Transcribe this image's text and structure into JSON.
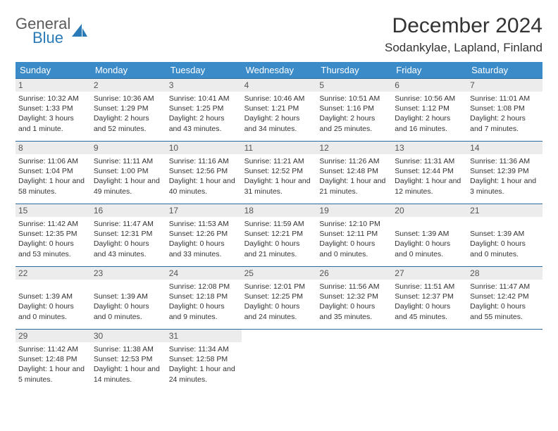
{
  "logo": {
    "top": "General",
    "bottom": "Blue"
  },
  "title": "December 2024",
  "location": "Sodankylae, Lapland, Finland",
  "colors": {
    "header_bg": "#3b8bc9",
    "border": "#2a6aa0",
    "daynum_bg": "#ececec",
    "text": "#333333",
    "logo_gray": "#5a5a5a",
    "logo_blue": "#2a7ab8"
  },
  "day_headers": [
    "Sunday",
    "Monday",
    "Tuesday",
    "Wednesday",
    "Thursday",
    "Friday",
    "Saturday"
  ],
  "weeks": [
    [
      {
        "n": "1",
        "sr": "Sunrise: 10:32 AM",
        "ss": "Sunset: 1:33 PM",
        "dl": "Daylight: 3 hours and 1 minute."
      },
      {
        "n": "2",
        "sr": "Sunrise: 10:36 AM",
        "ss": "Sunset: 1:29 PM",
        "dl": "Daylight: 2 hours and 52 minutes."
      },
      {
        "n": "3",
        "sr": "Sunrise: 10:41 AM",
        "ss": "Sunset: 1:25 PM",
        "dl": "Daylight: 2 hours and 43 minutes."
      },
      {
        "n": "4",
        "sr": "Sunrise: 10:46 AM",
        "ss": "Sunset: 1:21 PM",
        "dl": "Daylight: 2 hours and 34 minutes."
      },
      {
        "n": "5",
        "sr": "Sunrise: 10:51 AM",
        "ss": "Sunset: 1:16 PM",
        "dl": "Daylight: 2 hours and 25 minutes."
      },
      {
        "n": "6",
        "sr": "Sunrise: 10:56 AM",
        "ss": "Sunset: 1:12 PM",
        "dl": "Daylight: 2 hours and 16 minutes."
      },
      {
        "n": "7",
        "sr": "Sunrise: 11:01 AM",
        "ss": "Sunset: 1:08 PM",
        "dl": "Daylight: 2 hours and 7 minutes."
      }
    ],
    [
      {
        "n": "8",
        "sr": "Sunrise: 11:06 AM",
        "ss": "Sunset: 1:04 PM",
        "dl": "Daylight: 1 hour and 58 minutes."
      },
      {
        "n": "9",
        "sr": "Sunrise: 11:11 AM",
        "ss": "Sunset: 1:00 PM",
        "dl": "Daylight: 1 hour and 49 minutes."
      },
      {
        "n": "10",
        "sr": "Sunrise: 11:16 AM",
        "ss": "Sunset: 12:56 PM",
        "dl": "Daylight: 1 hour and 40 minutes."
      },
      {
        "n": "11",
        "sr": "Sunrise: 11:21 AM",
        "ss": "Sunset: 12:52 PM",
        "dl": "Daylight: 1 hour and 31 minutes."
      },
      {
        "n": "12",
        "sr": "Sunrise: 11:26 AM",
        "ss": "Sunset: 12:48 PM",
        "dl": "Daylight: 1 hour and 21 minutes."
      },
      {
        "n": "13",
        "sr": "Sunrise: 11:31 AM",
        "ss": "Sunset: 12:44 PM",
        "dl": "Daylight: 1 hour and 12 minutes."
      },
      {
        "n": "14",
        "sr": "Sunrise: 11:36 AM",
        "ss": "Sunset: 12:39 PM",
        "dl": "Daylight: 1 hour and 3 minutes."
      }
    ],
    [
      {
        "n": "15",
        "sr": "Sunrise: 11:42 AM",
        "ss": "Sunset: 12:35 PM",
        "dl": "Daylight: 0 hours and 53 minutes."
      },
      {
        "n": "16",
        "sr": "Sunrise: 11:47 AM",
        "ss": "Sunset: 12:31 PM",
        "dl": "Daylight: 0 hours and 43 minutes."
      },
      {
        "n": "17",
        "sr": "Sunrise: 11:53 AM",
        "ss": "Sunset: 12:26 PM",
        "dl": "Daylight: 0 hours and 33 minutes."
      },
      {
        "n": "18",
        "sr": "Sunrise: 11:59 AM",
        "ss": "Sunset: 12:21 PM",
        "dl": "Daylight: 0 hours and 21 minutes."
      },
      {
        "n": "19",
        "sr": "Sunrise: 12:10 PM",
        "ss": "Sunset: 12:11 PM",
        "dl": "Daylight: 0 hours and 0 minutes."
      },
      {
        "n": "20",
        "sr": "",
        "ss": "Sunset: 1:39 AM",
        "dl": "Daylight: 0 hours and 0 minutes."
      },
      {
        "n": "21",
        "sr": "",
        "ss": "Sunset: 1:39 AM",
        "dl": "Daylight: 0 hours and 0 minutes."
      }
    ],
    [
      {
        "n": "22",
        "sr": "",
        "ss": "Sunset: 1:39 AM",
        "dl": "Daylight: 0 hours and 0 minutes."
      },
      {
        "n": "23",
        "sr": "",
        "ss": "Sunset: 1:39 AM",
        "dl": "Daylight: 0 hours and 0 minutes."
      },
      {
        "n": "24",
        "sr": "Sunrise: 12:08 PM",
        "ss": "Sunset: 12:18 PM",
        "dl": "Daylight: 0 hours and 9 minutes."
      },
      {
        "n": "25",
        "sr": "Sunrise: 12:01 PM",
        "ss": "Sunset: 12:25 PM",
        "dl": "Daylight: 0 hours and 24 minutes."
      },
      {
        "n": "26",
        "sr": "Sunrise: 11:56 AM",
        "ss": "Sunset: 12:32 PM",
        "dl": "Daylight: 0 hours and 35 minutes."
      },
      {
        "n": "27",
        "sr": "Sunrise: 11:51 AM",
        "ss": "Sunset: 12:37 PM",
        "dl": "Daylight: 0 hours and 45 minutes."
      },
      {
        "n": "28",
        "sr": "Sunrise: 11:47 AM",
        "ss": "Sunset: 12:42 PM",
        "dl": "Daylight: 0 hours and 55 minutes."
      }
    ],
    [
      {
        "n": "29",
        "sr": "Sunrise: 11:42 AM",
        "ss": "Sunset: 12:48 PM",
        "dl": "Daylight: 1 hour and 5 minutes."
      },
      {
        "n": "30",
        "sr": "Sunrise: 11:38 AM",
        "ss": "Sunset: 12:53 PM",
        "dl": "Daylight: 1 hour and 14 minutes."
      },
      {
        "n": "31",
        "sr": "Sunrise: 11:34 AM",
        "ss": "Sunset: 12:58 PM",
        "dl": "Daylight: 1 hour and 24 minutes."
      },
      {
        "n": "",
        "sr": "",
        "ss": "",
        "dl": ""
      },
      {
        "n": "",
        "sr": "",
        "ss": "",
        "dl": ""
      },
      {
        "n": "",
        "sr": "",
        "ss": "",
        "dl": ""
      },
      {
        "n": "",
        "sr": "",
        "ss": "",
        "dl": ""
      }
    ]
  ]
}
